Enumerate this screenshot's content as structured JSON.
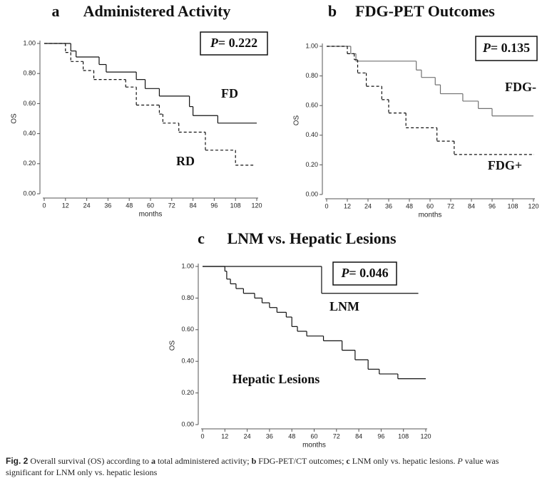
{
  "chart_data": [
    {
      "type": "step",
      "panel_label": "a",
      "title": "Administered Activity",
      "xlabel": "months",
      "ylabel": "OS",
      "p_symbol": "P",
      "p_text": "= 0.222",
      "xlim": [
        0,
        120
      ],
      "ylim": [
        0,
        1
      ],
      "xticks": [
        0,
        12,
        24,
        36,
        48,
        60,
        72,
        84,
        96,
        108,
        120
      ],
      "yticks": [
        {
          "value": 0,
          "label": "0.00"
        },
        {
          "value": 0.2,
          "label": "0.20"
        },
        {
          "value": 0.4,
          "label": "0.40"
        },
        {
          "value": 0.6,
          "label": "0.60"
        },
        {
          "value": 0.8,
          "label": "0.80"
        },
        {
          "value": 1,
          "label": "1.00"
        }
      ],
      "series": [
        {
          "name": "FD",
          "color": "#111111",
          "dash": false,
          "x": [
            0,
            15,
            18,
            31,
            35,
            52,
            57,
            65,
            82,
            84,
            98,
            120
          ],
          "values": [
            1,
            0.95,
            0.91,
            0.86,
            0.81,
            0.76,
            0.7,
            0.65,
            0.58,
            0.52,
            0.47,
            0.47
          ]
        },
        {
          "name": "RD",
          "color": "#111111",
          "dash": true,
          "x": [
            0,
            12,
            15,
            22,
            28,
            46,
            52,
            65,
            67,
            76,
            91,
            108,
            118
          ],
          "values": [
            1,
            0.94,
            0.88,
            0.82,
            0.76,
            0.71,
            0.59,
            0.53,
            0.47,
            0.41,
            0.29,
            0.19,
            0.19
          ]
        }
      ]
    },
    {
      "type": "step",
      "panel_label": "b",
      "title": "FDG-PET Outcomes",
      "xlabel": "months",
      "ylabel": "OS",
      "p_symbol": "P",
      "p_text": "= 0.135",
      "xlim": [
        0,
        120
      ],
      "ylim": [
        0,
        1
      ],
      "xticks": [
        0,
        12,
        24,
        36,
        48,
        60,
        72,
        84,
        96,
        108,
        120
      ],
      "yticks": [
        {
          "value": 0,
          "label": "0.00"
        },
        {
          "value": 0.2,
          "label": "0.20"
        },
        {
          "value": 0.4,
          "label": "0.40"
        },
        {
          "value": 0.6,
          "label": "0.60"
        },
        {
          "value": 0.8,
          "label": "0.80"
        },
        {
          "value": 1,
          "label": "1.00"
        }
      ],
      "series": [
        {
          "name": "FDG-",
          "color": "#707070",
          "dash": false,
          "x": [
            0,
            14,
            17,
            52,
            55,
            63,
            66,
            79,
            88,
            96,
            120
          ],
          "values": [
            1,
            0.95,
            0.9,
            0.84,
            0.79,
            0.74,
            0.68,
            0.63,
            0.58,
            0.53,
            0.53
          ]
        },
        {
          "name": "FDG+",
          "color": "#111111",
          "dash": true,
          "x": [
            0,
            12,
            16,
            18,
            23,
            32,
            36,
            46,
            64,
            74,
            120
          ],
          "values": [
            1,
            0.95,
            0.91,
            0.82,
            0.73,
            0.64,
            0.55,
            0.45,
            0.36,
            0.27,
            0.27
          ]
        }
      ]
    },
    {
      "type": "step",
      "panel_label": "c",
      "title": "LNM vs. Hepatic Lesions",
      "xlabel": "months",
      "ylabel": "OS",
      "p_symbol": "P",
      "p_text": "= 0.046",
      "xlim": [
        0,
        120
      ],
      "ylim": [
        0,
        1
      ],
      "xticks": [
        0,
        12,
        24,
        36,
        48,
        60,
        72,
        84,
        96,
        108,
        120
      ],
      "yticks": [
        {
          "value": 0,
          "label": "0.00"
        },
        {
          "value": 0.2,
          "label": "0.20"
        },
        {
          "value": 0.4,
          "label": "0.40"
        },
        {
          "value": 0.6,
          "label": "0.60"
        },
        {
          "value": 0.8,
          "label": "0.80"
        },
        {
          "value": 1,
          "label": "1.00"
        }
      ],
      "series": [
        {
          "name": "LNM",
          "color": "#111111",
          "dash": false,
          "x": [
            0,
            64,
            116
          ],
          "values": [
            1,
            0.83,
            0.83
          ]
        },
        {
          "name": "Hepatic Lesions",
          "color": "#111111",
          "dash": false,
          "x": [
            0,
            12,
            13,
            15,
            18,
            22,
            28,
            32,
            36,
            40,
            45,
            48,
            51,
            56,
            65,
            75,
            82,
            89,
            95,
            105,
            120
          ],
          "values": [
            1,
            0.97,
            0.92,
            0.89,
            0.86,
            0.83,
            0.8,
            0.77,
            0.74,
            0.71,
            0.68,
            0.62,
            0.59,
            0.56,
            0.53,
            0.47,
            0.41,
            0.35,
            0.32,
            0.29,
            0.29
          ]
        }
      ]
    }
  ],
  "caption": [
    {
      "text": "Fig. 2",
      "bold": true,
      "font": "sans"
    },
    {
      "text": "  Overall survival (OS) according to "
    },
    {
      "text": "a",
      "bold": true
    },
    {
      "text": " total administered activity; "
    },
    {
      "text": "b",
      "bold": true
    },
    {
      "text": " FDG-PET/CT outcomes; "
    },
    {
      "text": "c",
      "bold": true
    },
    {
      "text": " LNM only vs. hepatic lesions. "
    },
    {
      "text": "P",
      "italic": true
    },
    {
      "text": " value was"
    },
    {
      "text": "significant for LNM only vs. hepatic lesions",
      "newline": true
    }
  ]
}
